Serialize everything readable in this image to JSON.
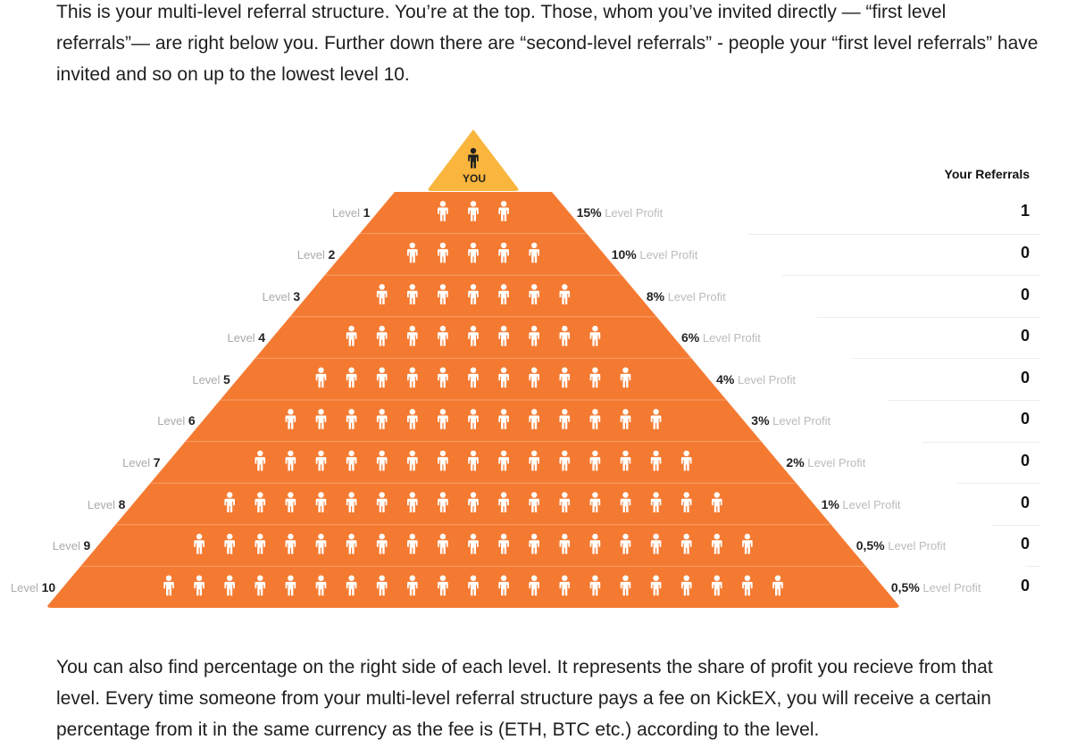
{
  "intro_text": "This is your multi-level referral structure. You’re at the top. Those, whom you’ve invited directly — “first level referrals”— are right below you. Further down there are “second-level referrals” - people your “first level referrals” have invited and so on up to the lowest level 10.",
  "outro_text": "You can also find percentage on the right side of each level. It represents the share of profit you recieve from that level. Every time someone from your multi-level referral structure pays a fee on KickEX, you will receive a certain percentage from it in the same currency as the fee is (ETH, BTC etc.) according to the level.",
  "you_label": "YOU",
  "referrals_header": "Your Referrals",
  "level_word": "Level",
  "profit_suffix": "Level Profit",
  "colors": {
    "pyramid": "#f47a31",
    "apex": "#f9b53c",
    "person": "#ffffff",
    "separator": "#f9a06a"
  },
  "icons": {
    "apex": "person-icon",
    "level": "person-icon"
  },
  "levels": [
    {
      "level": "1",
      "people": 3,
      "profit": "15%",
      "referrals": "1"
    },
    {
      "level": "2",
      "people": 5,
      "profit": "10%",
      "referrals": "0"
    },
    {
      "level": "3",
      "people": 7,
      "profit": "8%",
      "referrals": "0"
    },
    {
      "level": "4",
      "people": 9,
      "profit": "6%",
      "referrals": "0"
    },
    {
      "level": "5",
      "people": 11,
      "profit": "4%",
      "referrals": "0"
    },
    {
      "level": "6",
      "people": 13,
      "profit": "3%",
      "referrals": "0"
    },
    {
      "level": "7",
      "people": 15,
      "profit": "2%",
      "referrals": "0"
    },
    {
      "level": "8",
      "people": 17,
      "profit": "1%",
      "referrals": "0"
    },
    {
      "level": "9",
      "people": 19,
      "profit": "0,5%",
      "referrals": "0"
    },
    {
      "level": "10",
      "people": 21,
      "profit": "0,5%",
      "referrals": "0"
    }
  ]
}
